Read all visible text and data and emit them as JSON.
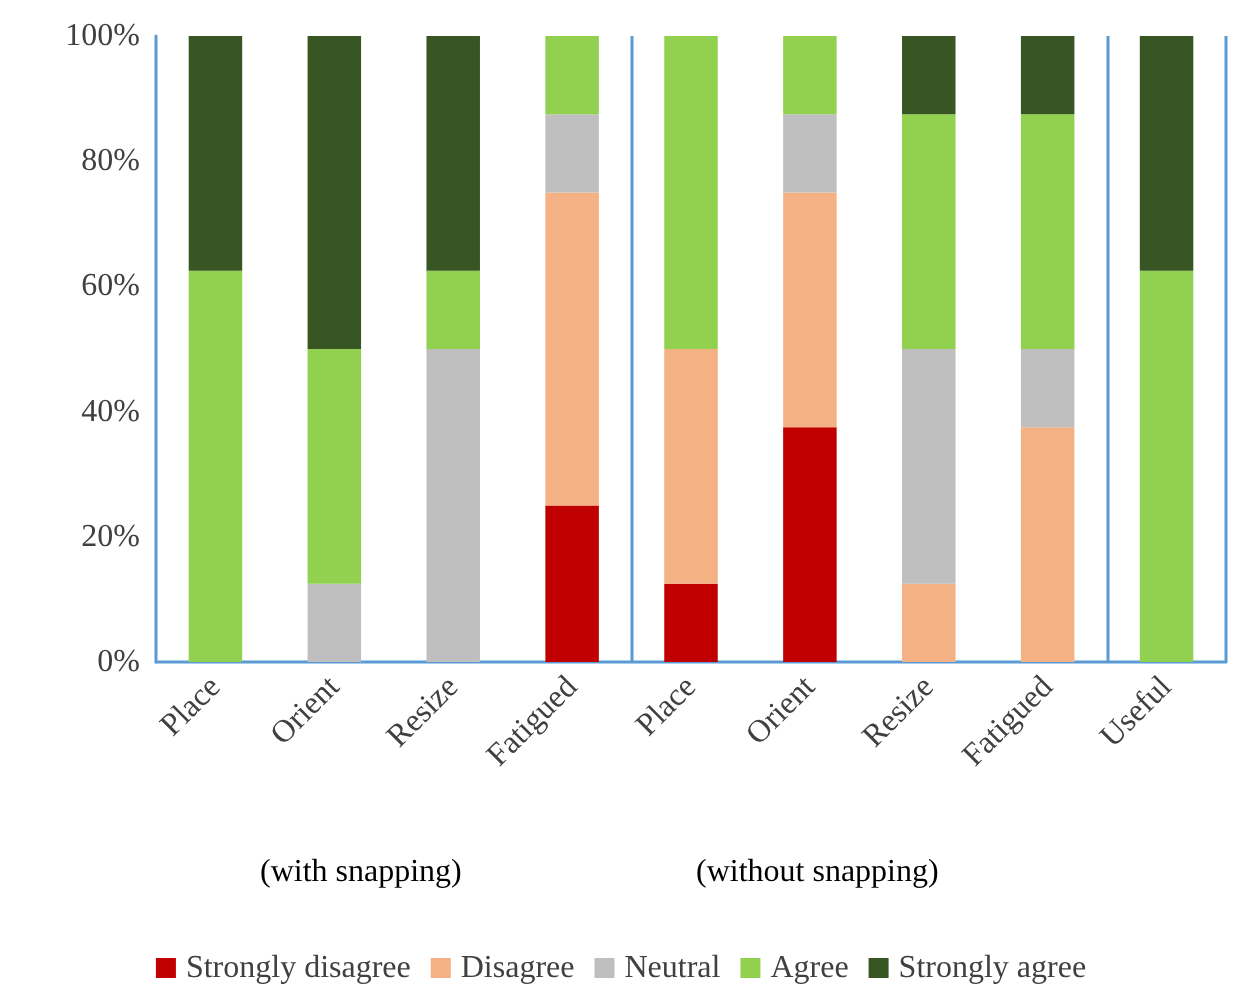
{
  "chart_data": {
    "type": "bar",
    "stacked": true,
    "categories": [
      "Place",
      "Orient",
      "Resize",
      "Fatigued",
      "Place",
      "Orient",
      "Resize",
      "Fatigued",
      "Useful"
    ],
    "series": [
      {
        "name": "Strongly disagree",
        "color": "#c00000",
        "values": [
          0,
          0,
          0,
          25,
          12.5,
          37.5,
          0,
          0,
          0
        ]
      },
      {
        "name": "Disagree",
        "color": "#f4b183",
        "values": [
          0,
          0,
          0,
          50,
          37.5,
          37.5,
          12.5,
          37.5,
          0
        ]
      },
      {
        "name": "Neutral",
        "color": "#bfbfbf",
        "values": [
          0,
          12.5,
          50,
          12.5,
          0,
          12.5,
          37.5,
          12.5,
          0
        ]
      },
      {
        "name": "Agree",
        "color": "#92d050",
        "values": [
          62.5,
          37.5,
          12.5,
          12.5,
          50,
          12.5,
          37.5,
          37.5,
          62.5
        ]
      },
      {
        "name": "Strongly agree",
        "color": "#375623",
        "values": [
          37.5,
          50,
          37.5,
          0,
          0,
          0,
          12.5,
          12.5,
          37.5
        ]
      }
    ],
    "ylim": [
      0,
      100
    ],
    "yticks": [
      {
        "value": 0,
        "label": "0%"
      },
      {
        "value": 20,
        "label": "20%"
      },
      {
        "value": 40,
        "label": "40%"
      },
      {
        "value": 60,
        "label": "60%"
      },
      {
        "value": 80,
        "label": "80%"
      },
      {
        "value": 100,
        "label": "100%"
      }
    ],
    "annotations": [
      "(with snapping)",
      "(without snapping)"
    ],
    "grid": false,
    "legend": "bottom"
  }
}
